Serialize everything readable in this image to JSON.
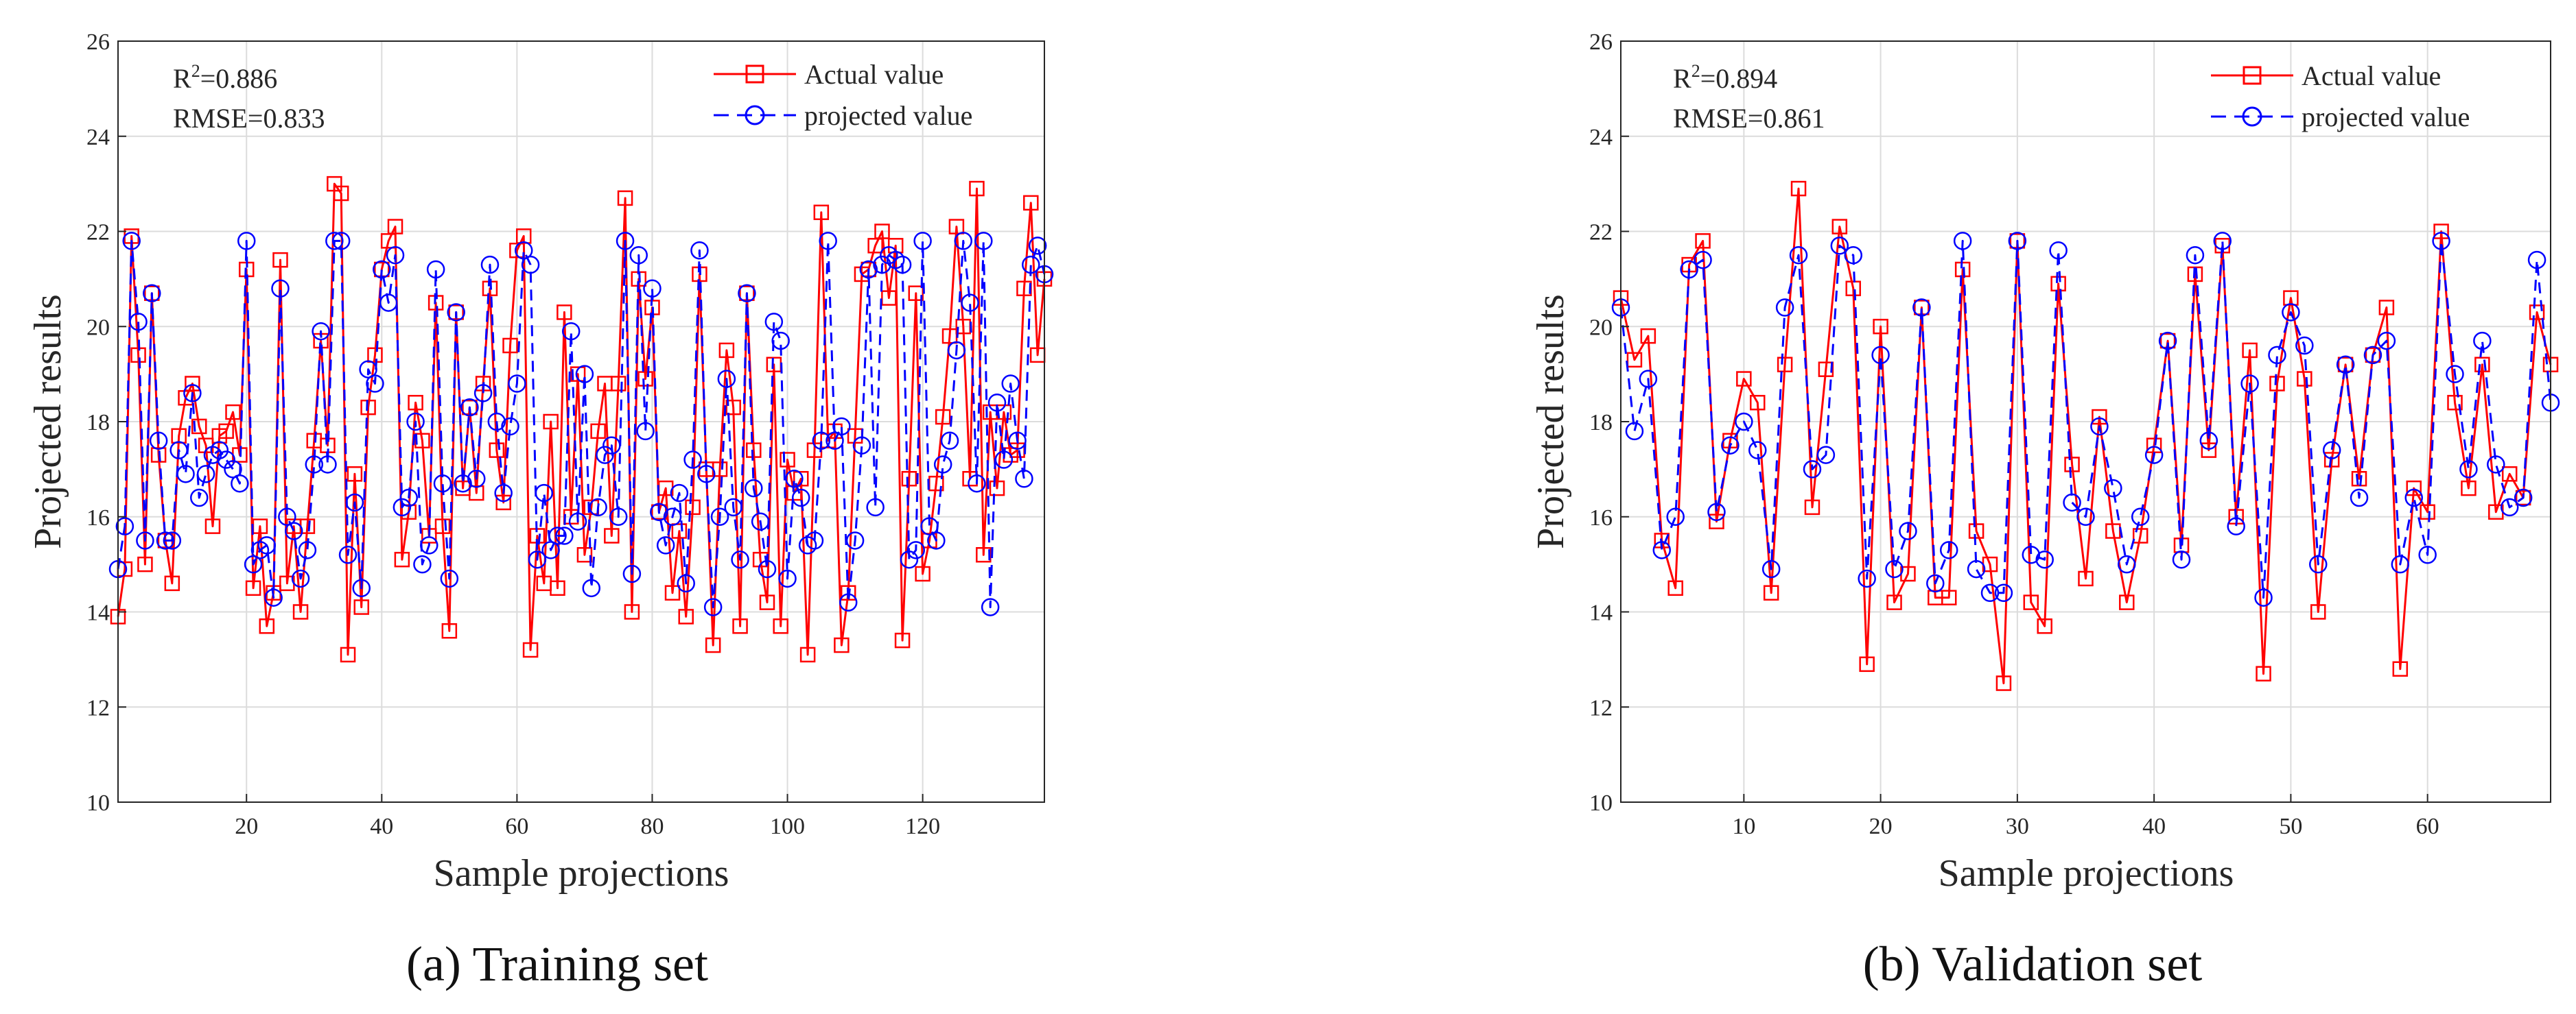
{
  "chart_data": [
    {
      "type": "line",
      "caption": "(a) Training set",
      "xlabel": "Sample projections",
      "ylabel": "Projected results",
      "xlim": [
        1,
        138
      ],
      "ylim": [
        10,
        26
      ],
      "xticks": [
        20,
        40,
        60,
        80,
        100,
        120
      ],
      "yticks": [
        10,
        12,
        14,
        16,
        18,
        20,
        22,
        24,
        26
      ],
      "grid": true,
      "legend": "top-right",
      "stats": {
        "r2_label": "R",
        "r2_sup": "2",
        "r2_value": "=0.886",
        "rmse": "RMSE=0.833"
      },
      "series": [
        {
          "name": "Actual value",
          "color": "#ff0000",
          "marker": "square",
          "linestyle": "solid",
          "values": [
            13.9,
            14.9,
            21.9,
            19.4,
            15.0,
            20.7,
            17.3,
            15.5,
            14.6,
            17.7,
            18.5,
            18.8,
            17.9,
            17.5,
            15.8,
            17.7,
            17.8,
            18.2,
            17.3,
            21.2,
            14.5,
            15.8,
            13.7,
            14.4,
            21.4,
            14.6,
            15.8,
            14.0,
            15.8,
            17.6,
            19.7,
            17.5,
            23.0,
            22.8,
            13.1,
            16.9,
            14.1,
            18.3,
            19.4,
            21.2,
            21.8,
            22.1,
            15.1,
            16.1,
            18.4,
            17.6,
            15.6,
            20.5,
            15.8,
            13.6,
            20.3,
            16.6,
            18.3,
            16.5,
            18.8,
            20.8,
            17.4,
            16.3,
            19.6,
            21.6,
            21.9,
            13.2,
            15.6,
            14.6,
            18.0,
            14.5,
            20.3,
            16.0,
            19.0,
            15.2,
            16.2,
            17.8,
            18.8,
            15.6,
            18.8,
            22.7,
            14.0,
            21.0,
            18.9,
            20.4,
            16.1,
            16.6,
            14.4,
            15.7,
            13.9,
            16.2,
            21.1,
            17.0,
            13.3,
            17.0,
            19.5,
            18.3,
            13.7,
            20.7,
            17.4,
            15.1,
            14.2,
            19.2,
            13.7,
            17.2,
            16.5,
            16.8,
            13.1,
            17.4,
            22.4,
            17.6,
            17.8,
            13.3,
            14.4,
            17.7,
            21.1,
            21.2,
            21.7,
            22.0,
            20.6,
            21.7,
            13.4,
            16.8,
            20.7,
            14.8,
            15.5,
            16.7,
            18.1,
            19.8,
            22.1,
            20.0,
            16.8,
            22.9,
            15.2,
            18.2,
            16.6,
            18.2,
            17.3,
            17.4,
            20.8,
            22.6,
            19.4,
            21.0
          ]
        },
        {
          "name": "projected value",
          "color": "#0000ff",
          "marker": "circle",
          "linestyle": "dashed",
          "values": [
            14.9,
            15.8,
            21.8,
            20.1,
            15.5,
            20.7,
            17.6,
            15.5,
            15.5,
            17.4,
            16.9,
            18.6,
            16.4,
            16.9,
            17.3,
            17.4,
            17.2,
            17.0,
            16.7,
            21.8,
            15.0,
            15.3,
            15.4,
            14.3,
            20.8,
            16.0,
            15.7,
            14.7,
            15.3,
            17.1,
            19.9,
            17.1,
            21.8,
            21.8,
            15.2,
            16.3,
            14.5,
            19.1,
            18.8,
            21.2,
            20.5,
            21.5,
            16.2,
            16.4,
            18.0,
            15.0,
            15.4,
            21.2,
            16.7,
            14.7,
            20.3,
            16.7,
            18.3,
            16.8,
            18.6,
            21.3,
            18.0,
            16.5,
            17.9,
            18.8,
            21.6,
            21.3,
            15.1,
            16.5,
            15.3,
            15.6,
            15.6,
            19.9,
            15.9,
            19.0,
            14.5,
            16.2,
            17.3,
            17.5,
            16.0,
            21.8,
            14.8,
            21.5,
            17.8,
            20.8,
            16.1,
            15.4,
            16.0,
            16.5,
            14.6,
            17.2,
            21.6,
            16.9,
            14.1,
            16.0,
            18.9,
            16.2,
            15.1,
            20.7,
            16.6,
            15.9,
            14.9,
            20.1,
            19.7,
            14.7,
            16.8,
            16.4,
            15.4,
            15.5,
            17.6,
            21.8,
            17.6,
            17.9,
            14.2,
            15.5,
            17.5,
            21.2,
            16.2,
            21.3,
            21.5,
            21.4,
            21.3,
            15.1,
            15.3,
            21.8,
            15.8,
            15.5,
            17.1,
            17.6,
            19.5,
            21.8,
            20.5,
            16.7,
            21.8,
            14.1,
            18.4,
            17.2,
            18.8,
            17.6,
            16.8,
            21.3,
            21.7,
            21.1
          ]
        }
      ]
    },
    {
      "type": "line",
      "caption": "(b) Validation set",
      "xlabel": "Sample projections",
      "ylabel": "Projected results",
      "xlim": [
        1,
        69
      ],
      "ylim": [
        10,
        26
      ],
      "xticks": [
        10,
        20,
        30,
        40,
        50,
        60
      ],
      "yticks": [
        10,
        12,
        14,
        16,
        18,
        20,
        22,
        24,
        26
      ],
      "grid": true,
      "legend": "top-right",
      "stats": {
        "r2_label": "R",
        "r2_sup": "2",
        "r2_value": "=0.894",
        "rmse": "RMSE=0.861"
      },
      "series": [
        {
          "name": "Actual value",
          "color": "#ff0000",
          "marker": "square",
          "linestyle": "solid",
          "values": [
            20.6,
            19.3,
            19.8,
            15.5,
            14.5,
            21.3,
            21.8,
            15.9,
            17.6,
            18.9,
            18.4,
            14.4,
            19.2,
            22.9,
            16.2,
            19.1,
            22.1,
            20.8,
            12.9,
            20.0,
            14.2,
            14.8,
            20.4,
            14.3,
            14.3,
            21.2,
            15.7,
            15.0,
            12.5,
            21.8,
            14.2,
            13.7,
            20.9,
            17.1,
            14.7,
            18.1,
            15.7,
            14.2,
            15.6,
            17.5,
            19.7,
            15.4,
            21.1,
            17.4,
            21.7,
            16.0,
            19.5,
            12.7,
            18.8,
            20.6,
            18.9,
            14.0,
            17.2,
            19.2,
            16.8,
            19.4,
            20.4,
            12.8,
            16.6,
            16.1,
            22.0,
            18.4,
            16.6,
            19.2,
            16.1,
            16.9,
            16.4,
            20.3,
            19.2
          ]
        },
        {
          "name": "projected value",
          "color": "#0000ff",
          "marker": "circle",
          "linestyle": "dashed",
          "values": [
            20.4,
            17.8,
            18.9,
            15.3,
            16.0,
            21.2,
            21.4,
            16.1,
            17.5,
            18.0,
            17.4,
            14.9,
            20.4,
            21.5,
            17.0,
            17.3,
            21.7,
            21.5,
            14.7,
            19.4,
            14.9,
            15.7,
            20.4,
            14.6,
            15.3,
            21.8,
            14.9,
            14.4,
            14.4,
            21.8,
            15.2,
            15.1,
            21.6,
            16.3,
            16.0,
            17.9,
            16.6,
            15.0,
            16.0,
            17.3,
            19.7,
            15.1,
            21.5,
            17.6,
            21.8,
            15.8,
            18.8,
            14.3,
            19.4,
            20.3,
            19.6,
            15.0,
            17.4,
            19.2,
            16.4,
            19.4,
            19.7,
            15.0,
            16.4,
            15.2,
            21.8,
            19.0,
            17.0,
            19.7,
            17.1,
            16.2,
            16.4,
            21.4,
            18.4
          ]
        }
      ]
    }
  ]
}
